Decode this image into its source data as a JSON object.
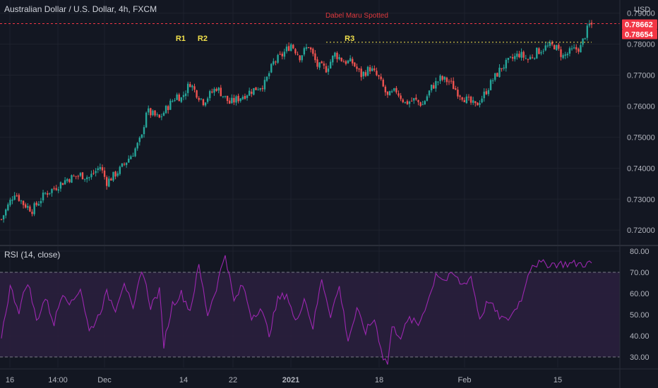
{
  "header": {
    "title": "Australian Dollar / U.S. Dollar, 4h, FXCM",
    "currency": "USD",
    "rsi_title": "RSI (14, close)"
  },
  "colors": {
    "background": "#131722",
    "up": "#26a69a",
    "down": "#ef5350",
    "rsi_line": "#9c27b0",
    "rsi_band": "#2a1f3d",
    "price_line": "#f23645",
    "resistance": "#f2e14c"
  },
  "chart_data": [
    {
      "type": "candlestick",
      "title": "Australian Dollar / U.S. Dollar, 4h, FXCM",
      "y_unit": "USD",
      "ylim": [
        0.7155,
        0.7915
      ],
      "y_ticks": [
        "0.72000",
        "0.73000",
        "0.74000",
        "0.75000",
        "0.76000",
        "0.77000",
        "0.78000",
        "0.79000"
      ],
      "x_ticks": [
        "16",
        "14:00",
        "Dec",
        "14",
        "22",
        "2021",
        "18",
        "Feb",
        "15"
      ],
      "grid": true,
      "price_labels": [
        "0.78662",
        "0.78654"
      ],
      "resistance_level": 0.7806,
      "current_price": 0.7866,
      "annotations": [
        {
          "label": "R1",
          "x_index": 82,
          "y": 0.7806
        },
        {
          "label": "R2",
          "x_index": 92,
          "y": 0.7806
        },
        {
          "label": "R3",
          "x_index": 159,
          "y": 0.7806
        },
        {
          "label": "Dabel Maru Spotted",
          "x_index": 148,
          "y": 0.7874
        }
      ],
      "close_path": [
        [
          0,
          0.7235
        ],
        [
          6,
          0.7322
        ],
        [
          10,
          0.7285
        ],
        [
          14,
          0.7265
        ],
        [
          20,
          0.7318
        ],
        [
          24,
          0.7335
        ],
        [
          30,
          0.7365
        ],
        [
          36,
          0.7378
        ],
        [
          40,
          0.737
        ],
        [
          45,
          0.7405
        ],
        [
          48,
          0.7355
        ],
        [
          54,
          0.7395
        ],
        [
          60,
          0.745
        ],
        [
          64,
          0.75
        ],
        [
          66,
          0.7585
        ],
        [
          72,
          0.756
        ],
        [
          76,
          0.76
        ],
        [
          80,
          0.7635
        ],
        [
          82,
          0.7625
        ],
        [
          86,
          0.7675
        ],
        [
          88,
          0.765
        ],
        [
          92,
          0.7615
        ],
        [
          98,
          0.766
        ],
        [
          104,
          0.761
        ],
        [
          108,
          0.7625
        ],
        [
          114,
          0.765
        ],
        [
          120,
          0.7672
        ],
        [
          124,
          0.774
        ],
        [
          128,
          0.7765
        ],
        [
          132,
          0.78
        ],
        [
          136,
          0.776
        ],
        [
          140,
          0.7795
        ],
        [
          144,
          0.773
        ],
        [
          148,
          0.772
        ],
        [
          152,
          0.7768
        ],
        [
          156,
          0.7745
        ],
        [
          160,
          0.774
        ],
        [
          164,
          0.77
        ],
        [
          168,
          0.7722
        ],
        [
          172,
          0.769
        ],
        [
          176,
          0.763
        ],
        [
          180,
          0.765
        ],
        [
          184,
          0.761
        ],
        [
          188,
          0.762
        ],
        [
          192,
          0.7605
        ],
        [
          196,
          0.766
        ],
        [
          200,
          0.7688
        ],
        [
          204,
          0.768
        ],
        [
          208,
          0.7645
        ],
        [
          212,
          0.762
        ],
        [
          216,
          0.76
        ],
        [
          220,
          0.7638
        ],
        [
          224,
          0.7685
        ],
        [
          228,
          0.7725
        ],
        [
          232,
          0.7748
        ],
        [
          236,
          0.7768
        ],
        [
          240,
          0.775
        ],
        [
          244,
          0.7775
        ],
        [
          248,
          0.779
        ],
        [
          252,
          0.7795
        ],
        [
          256,
          0.776
        ],
        [
          260,
          0.7778
        ],
        [
          264,
          0.779
        ],
        [
          266,
          0.783
        ],
        [
          268,
          0.7862
        ]
      ]
    },
    {
      "type": "line",
      "title": "RSI (14, close)",
      "ylim": [
        25,
        82
      ],
      "y_ticks": [
        "30.00",
        "40.00",
        "50.00",
        "60.00",
        "70.00",
        "80.00"
      ],
      "levels": [
        30,
        70
      ],
      "path": [
        [
          0,
          40
        ],
        [
          4,
          63
        ],
        [
          8,
          52
        ],
        [
          12,
          66
        ],
        [
          16,
          47
        ],
        [
          20,
          58
        ],
        [
          24,
          46
        ],
        [
          28,
          61
        ],
        [
          32,
          55
        ],
        [
          36,
          63
        ],
        [
          40,
          42
        ],
        [
          44,
          49
        ],
        [
          48,
          60
        ],
        [
          52,
          53
        ],
        [
          56,
          66
        ],
        [
          60,
          51
        ],
        [
          64,
          72
        ],
        [
          68,
          54
        ],
        [
          72,
          61
        ],
        [
          74,
          36
        ],
        [
          78,
          55
        ],
        [
          82,
          60
        ],
        [
          86,
          52
        ],
        [
          90,
          73
        ],
        [
          94,
          50
        ],
        [
          98,
          63
        ],
        [
          102,
          79
        ],
        [
          106,
          56
        ],
        [
          110,
          64
        ],
        [
          114,
          49
        ],
        [
          118,
          53
        ],
        [
          122,
          41
        ],
        [
          126,
          57
        ],
        [
          130,
          60
        ],
        [
          134,
          46
        ],
        [
          138,
          58
        ],
        [
          142,
          44
        ],
        [
          146,
          67
        ],
        [
          150,
          50
        ],
        [
          154,
          63
        ],
        [
          158,
          38
        ],
        [
          162,
          52
        ],
        [
          166,
          42
        ],
        [
          170,
          48
        ],
        [
          174,
          30
        ],
        [
          176,
          27
        ],
        [
          178,
          44
        ],
        [
          182,
          40
        ],
        [
          186,
          48
        ],
        [
          190,
          45
        ],
        [
          194,
          56
        ],
        [
          196,
          61
        ],
        [
          198,
          70
        ],
        [
          202,
          66
        ],
        [
          206,
          69
        ],
        [
          210,
          64
        ],
        [
          214,
          68
        ],
        [
          218,
          48
        ],
        [
          222,
          57
        ],
        [
          226,
          50
        ],
        [
          230,
          47
        ],
        [
          234,
          52
        ],
        [
          238,
          60
        ],
        [
          240,
          70
        ],
        [
          242,
          74
        ]
      ]
    }
  ]
}
